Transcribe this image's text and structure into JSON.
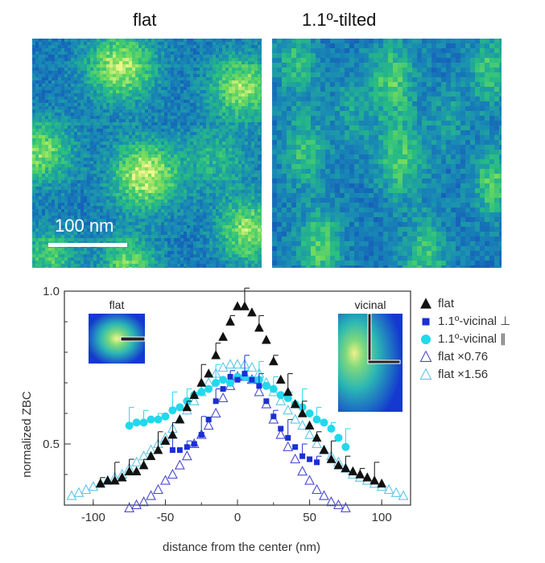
{
  "maps": {
    "left_title": "flat",
    "right_title": "1.1º-tilted",
    "scale_label": "100 nm"
  },
  "chart_data": {
    "type": "scatter",
    "title": "",
    "xlabel": "distance from the center (nm)",
    "ylabel": "normalized ZBC",
    "xlim": [
      -120,
      120
    ],
    "ylim": [
      0.3,
      1.0
    ],
    "xticks": [
      -100,
      -50,
      0,
      50,
      100
    ],
    "yticks_labeled": [
      0.5,
      1.0
    ],
    "tick_labels_x": [
      "-100",
      "-50",
      "0",
      "50",
      "100"
    ],
    "tick_labels_y": [
      "0.5",
      "1.0"
    ],
    "legend_position": "right",
    "inset_labels": [
      "flat",
      "vicinal"
    ],
    "colors": {
      "flat": "#111111",
      "vicinal_perp": "#1a2fd6",
      "vicinal_par": "#22d8ec",
      "flat_076": "#4a4ad0",
      "flat_156": "#5fc6e8"
    },
    "series": [
      {
        "name": "flat",
        "marker": "triangle-filled",
        "color_key": "flat",
        "x": [
          -95,
          -90,
          -85,
          -80,
          -75,
          -70,
          -65,
          -60,
          -55,
          -50,
          -45,
          -40,
          -35,
          -30,
          -25,
          -20,
          -15,
          -10,
          -5,
          0,
          5,
          10,
          15,
          20,
          25,
          30,
          35,
          40,
          45,
          50,
          55,
          60,
          65,
          70,
          75,
          80,
          85,
          90,
          95,
          100
        ],
        "y": [
          0.37,
          0.38,
          0.38,
          0.39,
          0.41,
          0.41,
          0.43,
          0.46,
          0.48,
          0.51,
          0.53,
          0.58,
          0.62,
          0.66,
          0.7,
          0.73,
          0.79,
          0.85,
          0.9,
          0.95,
          0.95,
          0.93,
          0.88,
          0.84,
          0.77,
          0.71,
          0.67,
          0.63,
          0.6,
          0.56,
          0.52,
          0.48,
          0.45,
          0.43,
          0.42,
          0.41,
          0.4,
          0.39,
          0.38,
          0.37
        ]
      },
      {
        "name": "1.1º-vicinal ⊥",
        "marker": "square-filled",
        "color_key": "vicinal_perp",
        "x": [
          -45,
          -40,
          -35,
          -30,
          -25,
          -20,
          -15,
          -10,
          -5,
          0,
          5,
          10,
          15,
          20,
          25,
          30,
          35,
          40,
          45,
          50,
          55
        ],
        "y": [
          0.48,
          0.48,
          0.49,
          0.5,
          0.53,
          0.58,
          0.64,
          0.68,
          0.72,
          0.71,
          0.73,
          0.71,
          0.69,
          0.64,
          0.59,
          0.55,
          0.52,
          0.49,
          0.46,
          0.45,
          0.44
        ]
      },
      {
        "name": "1.1º-vicinal ∥",
        "marker": "circle-filled",
        "color_key": "vicinal_par",
        "x": [
          -75,
          -70,
          -65,
          -60,
          -55,
          -50,
          -45,
          -40,
          -35,
          -30,
          -25,
          -20,
          -15,
          -10,
          -5,
          0,
          5,
          10,
          15,
          20,
          25,
          30,
          35,
          40,
          45,
          50,
          55,
          60,
          65,
          70,
          75
        ],
        "y": [
          0.56,
          0.57,
          0.57,
          0.58,
          0.58,
          0.59,
          0.61,
          0.62,
          0.64,
          0.66,
          0.67,
          0.68,
          0.7,
          0.71,
          0.7,
          0.72,
          0.72,
          0.71,
          0.71,
          0.69,
          0.68,
          0.66,
          0.65,
          0.63,
          0.62,
          0.6,
          0.58,
          0.57,
          0.55,
          0.52,
          0.49
        ]
      },
      {
        "name": "flat ×0.76",
        "marker": "triangle-open",
        "color_key": "flat_076",
        "x": [
          -75,
          -70,
          -65,
          -60,
          -55,
          -50,
          -45,
          -40,
          -35,
          -30,
          -25,
          -20,
          -15,
          -10,
          -5,
          0,
          5,
          10,
          15,
          20,
          25,
          30,
          35,
          40,
          45,
          50,
          55,
          60,
          65,
          70,
          75
        ],
        "y": [
          0.29,
          0.3,
          0.31,
          0.33,
          0.35,
          0.38,
          0.4,
          0.43,
          0.46,
          0.5,
          0.53,
          0.56,
          0.6,
          0.65,
          0.69,
          0.72,
          0.72,
          0.71,
          0.67,
          0.63,
          0.58,
          0.53,
          0.49,
          0.45,
          0.41,
          0.38,
          0.35,
          0.33,
          0.31,
          0.3,
          0.29
        ]
      },
      {
        "name": "flat ×1.56",
        "marker": "triangle-open",
        "color_key": "flat_156",
        "x": [
          -115,
          -110,
          -105,
          -100,
          -95,
          -90,
          -85,
          -80,
          -75,
          -70,
          -65,
          -60,
          -55,
          -50,
          -45,
          -40,
          -35,
          -30,
          -25,
          -20,
          -15,
          -10,
          -5,
          0,
          5,
          10,
          15,
          20,
          25,
          30,
          35,
          40,
          45,
          50,
          55,
          60,
          65,
          70,
          75,
          80,
          85,
          90,
          95,
          100,
          105,
          110,
          115
        ],
        "y": [
          0.33,
          0.34,
          0.35,
          0.36,
          0.37,
          0.38,
          0.39,
          0.4,
          0.42,
          0.44,
          0.46,
          0.48,
          0.5,
          0.52,
          0.55,
          0.58,
          0.61,
          0.64,
          0.67,
          0.7,
          0.73,
          0.75,
          0.76,
          0.76,
          0.76,
          0.75,
          0.73,
          0.7,
          0.67,
          0.64,
          0.61,
          0.58,
          0.56,
          0.53,
          0.5,
          0.48,
          0.46,
          0.44,
          0.42,
          0.4,
          0.39,
          0.38,
          0.37,
          0.36,
          0.35,
          0.34,
          0.33
        ]
      }
    ]
  }
}
